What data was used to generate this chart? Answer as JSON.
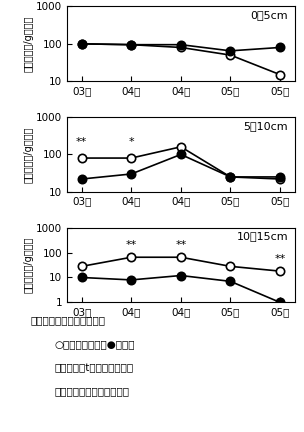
{
  "x_labels": [
    "03秋",
    "04春",
    "04秋",
    "05春",
    "05秋"
  ],
  "panel0": {
    "title": "0－5cm",
    "ylim": [
      10,
      1000
    ],
    "yticks": [
      10,
      100,
      1000
    ],
    "open_circle": [
      100,
      95,
      80,
      50,
      15
    ],
    "filled_circle": [
      100,
      95,
      95,
      65,
      80
    ],
    "stars": []
  },
  "panel1": {
    "title": "5－10cm",
    "ylim": [
      10,
      1000
    ],
    "yticks": [
      10,
      100,
      1000
    ],
    "open_circle": [
      80,
      80,
      160,
      25,
      22
    ],
    "filled_circle": [
      22,
      30,
      100,
      25,
      25
    ],
    "stars": [
      [
        "**",
        0
      ],
      [
        "*",
        1
      ]
    ]
  },
  "panel2": {
    "title": "10－15cm",
    "ylim": [
      1,
      1000
    ],
    "yticks": [
      1,
      10,
      100,
      1000
    ],
    "open_circle": [
      28,
      65,
      65,
      28,
      18
    ],
    "filled_circle": [
      10,
      8,
      12,
      7,
      1
    ],
    "stars": [
      [
        "**",
        1
      ],
      [
        "**",
        2
      ],
      [
        "**",
        4
      ]
    ]
  },
  "ylabel": "卵密度（個/g乾土）",
  "caption_line1": "図２　深さ別卵密度の推移",
  "caption_line2": "○：ロータリ耕　●：浅耕",
  "caption_line3": "＊、＊＊はt検定でそれぞれ",
  "caption_line4": "５または１％で有意差有り",
  "background_color": "#ffffff"
}
